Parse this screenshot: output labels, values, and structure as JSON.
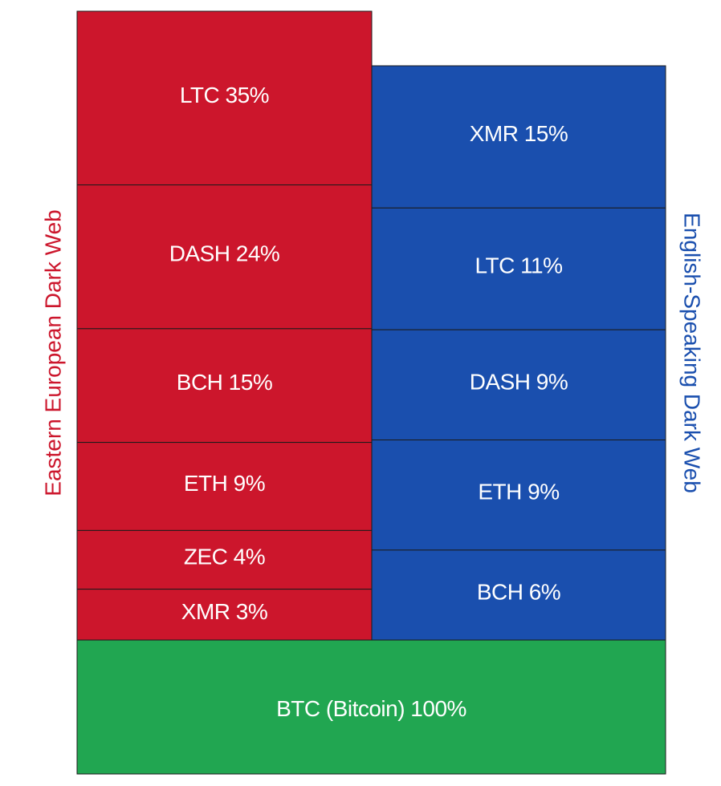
{
  "chart_data": {
    "type": "bar",
    "subtype": "stacked-block",
    "groups": [
      {
        "name": "Eastern European Dark Web",
        "color": "#cc162c",
        "segments": [
          {
            "label": "LTC 35%",
            "currency": "LTC",
            "value": 35
          },
          {
            "label": "DASH 24%",
            "currency": "DASH",
            "value": 24
          },
          {
            "label": "BCH 15%",
            "currency": "BCH",
            "value": 15
          },
          {
            "label": "ETH 9%",
            "currency": "ETH",
            "value": 9
          },
          {
            "label": "ZEC 4%",
            "currency": "ZEC",
            "value": 4
          },
          {
            "label": "XMR 3%",
            "currency": "XMR",
            "value": 3
          }
        ]
      },
      {
        "name": "English-Speaking Dark Web",
        "color": "#1a4fae",
        "segments": [
          {
            "label": "XMR 15%",
            "currency": "XMR",
            "value": 15
          },
          {
            "label": "LTC 11%",
            "currency": "LTC",
            "value": 11
          },
          {
            "label": "DASH 9%",
            "currency": "DASH",
            "value": 9
          },
          {
            "label": "ETH 9%",
            "currency": "ETH",
            "value": 9
          },
          {
            "label": "BCH 6%",
            "currency": "BCH",
            "value": 6
          }
        ]
      }
    ],
    "base": {
      "label": "BTC (Bitcoin) 100%",
      "currency": "BTC",
      "value": 100,
      "color": "#21a651"
    },
    "side_labels": {
      "left": "Eastern European Dark Web",
      "right": "English-Speaking Dark Web"
    }
  }
}
